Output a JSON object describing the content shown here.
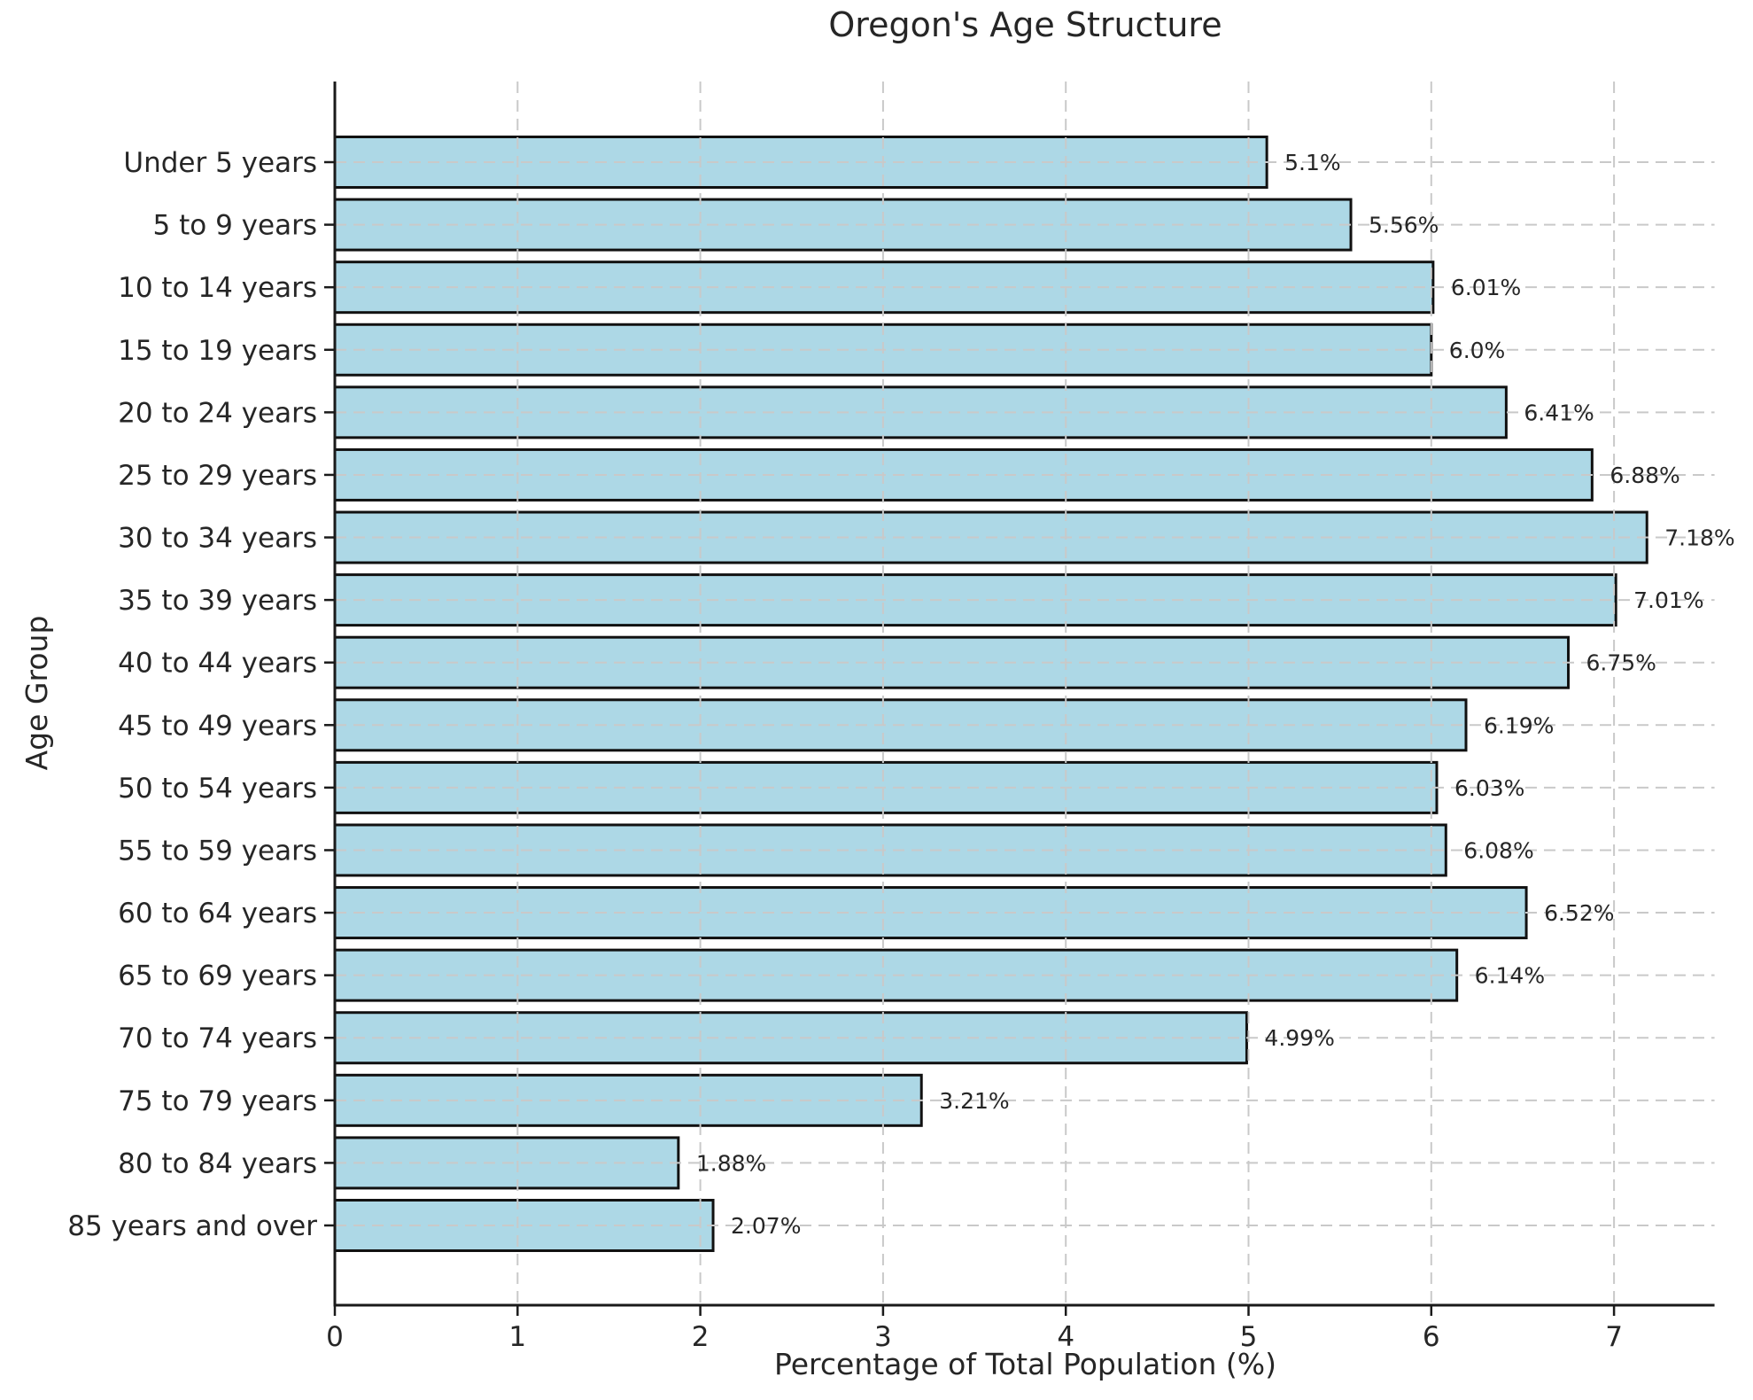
{
  "chart_data": {
    "type": "bar",
    "orientation": "horizontal",
    "title": "Oregon's Age Structure",
    "xlabel": "Percentage of Total Population (%)",
    "ylabel": "Age Group",
    "categories": [
      "Under 5 years",
      "5 to 9 years",
      "10 to 14 years",
      "15 to 19 years",
      "20 to 24 years",
      "25 to 29 years",
      "30 to 34 years",
      "35 to 39 years",
      "40 to 44 years",
      "45 to 49 years",
      "50 to 54 years",
      "55 to 59 years",
      "60 to 64 years",
      "65 to 69 years",
      "70 to 74 years",
      "75 to 79 years",
      "80 to 84 years",
      "85 years and over"
    ],
    "values": [
      5.1,
      5.56,
      6.01,
      6.0,
      6.41,
      6.88,
      7.18,
      7.01,
      6.75,
      6.19,
      6.03,
      6.08,
      6.52,
      6.14,
      4.99,
      3.21,
      1.88,
      2.07
    ],
    "value_labels": [
      "5.1%",
      "5.56%",
      "6.01%",
      "6.0%",
      "6.41%",
      "6.88%",
      "7.18%",
      "7.01%",
      "6.75%",
      "6.19%",
      "6.03%",
      "6.08%",
      "6.52%",
      "6.14%",
      "4.99%",
      "3.21%",
      "1.88%",
      "2.07%"
    ],
    "x_ticks": [
      0,
      1,
      2,
      3,
      4,
      5,
      6,
      7
    ],
    "xlim": [
      0,
      7.55
    ],
    "grid": "both-dashed",
    "legend_position": "none",
    "bar_color": "#ADD8E6",
    "bar_edge_color": "#111111",
    "grid_color": "#c9c9c9",
    "axis_color": "#1a1a1a",
    "text_color": "#262626"
  }
}
